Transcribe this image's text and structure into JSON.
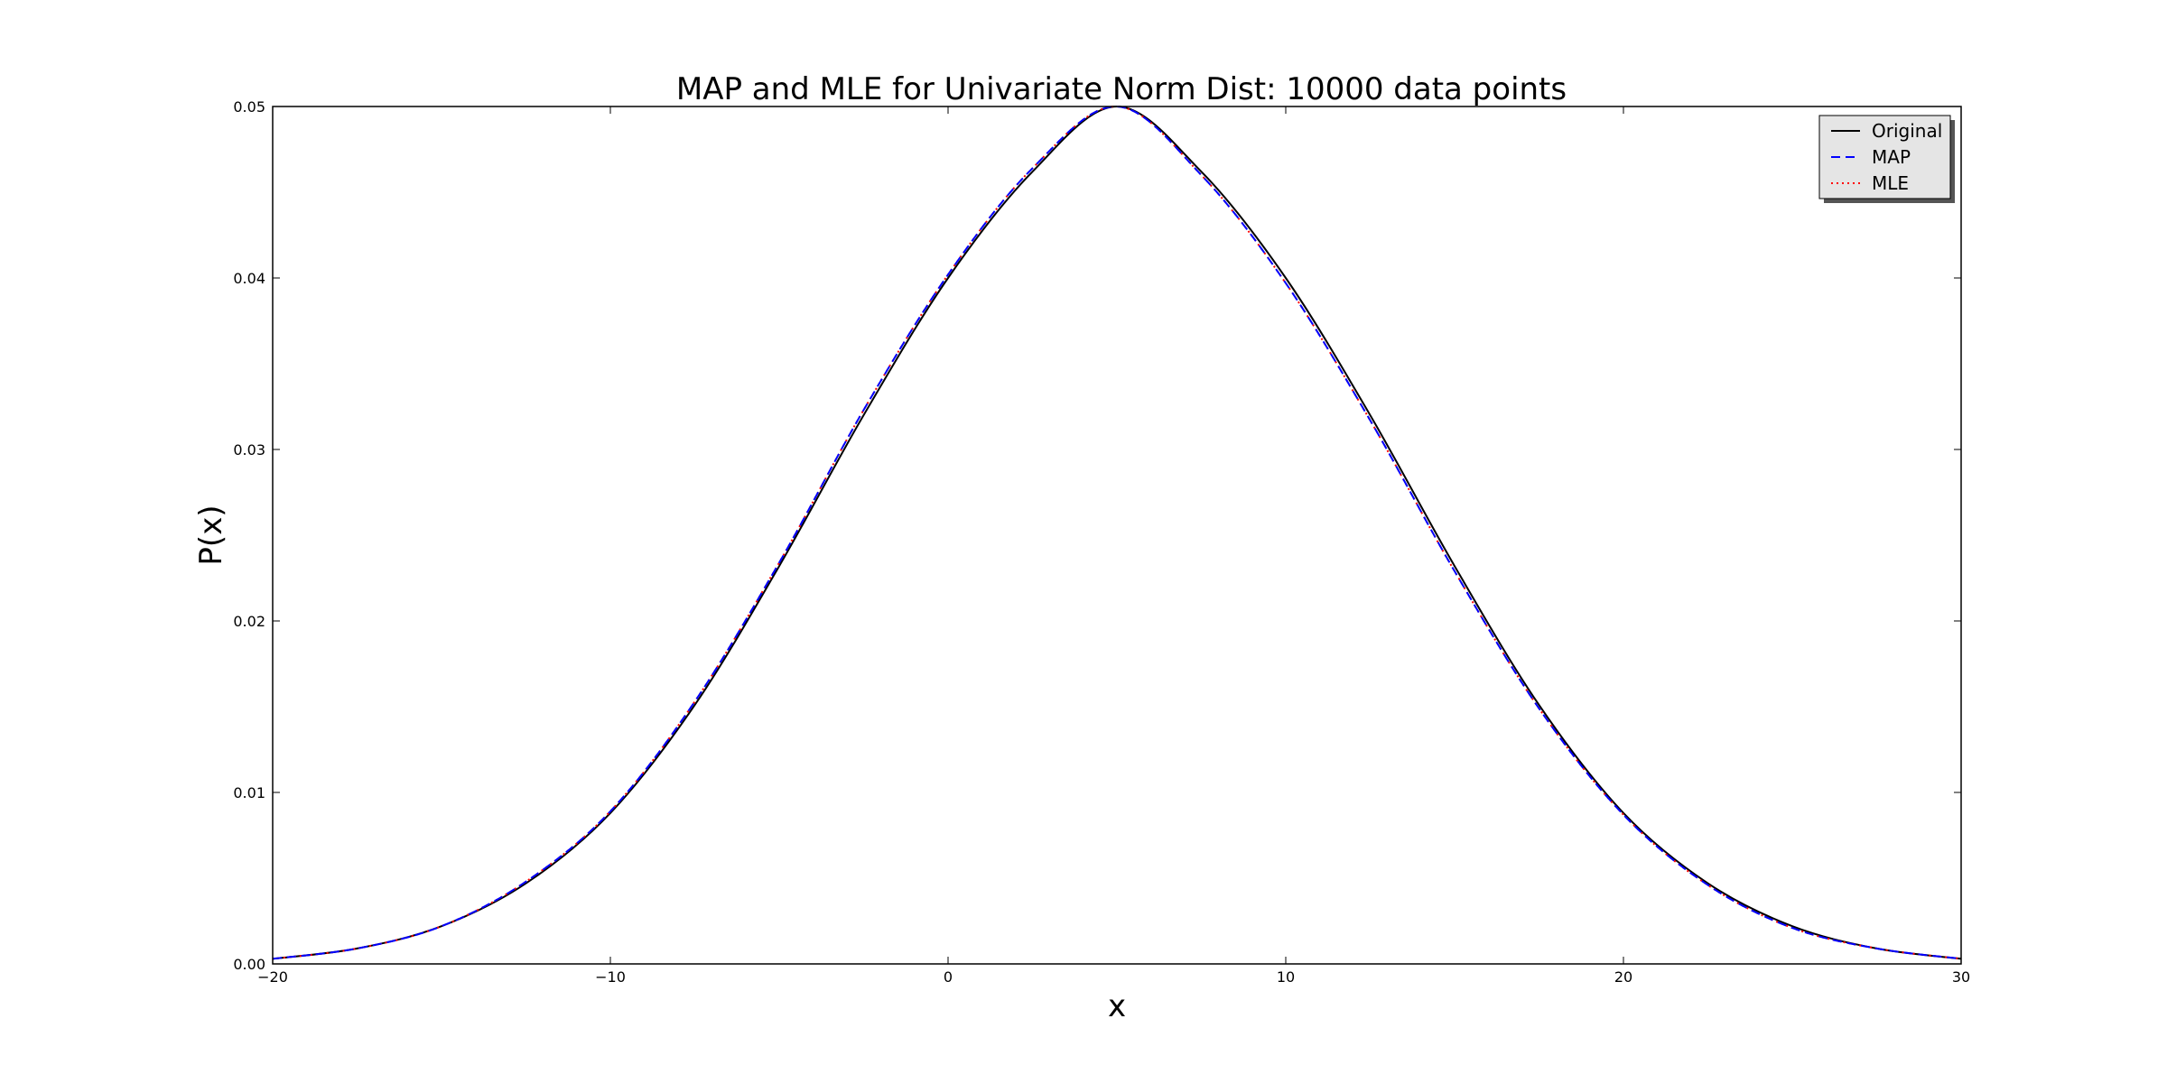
{
  "chart_data": {
    "type": "line",
    "title": "MAP and MLE for Univariate Norm Dist: 10000 data points",
    "xlabel": "x",
    "ylabel": "P(x)",
    "xlim": [
      -20,
      30
    ],
    "ylim": [
      0.0,
      0.05
    ],
    "xticks": [
      -20,
      -10,
      0,
      10,
      20,
      30
    ],
    "xtick_labels": [
      "−20",
      "−10",
      "0",
      "10",
      "20",
      "30"
    ],
    "yticks": [
      0.0,
      0.01,
      0.02,
      0.03,
      0.04,
      0.05
    ],
    "ytick_labels": [
      "0.00",
      "0.01",
      "0.02",
      "0.03",
      "0.04",
      "0.05"
    ],
    "grid": false,
    "legend_position": "top-right",
    "series": [
      {
        "name": "Original",
        "color": "#000000",
        "style": "solid",
        "x": [
          -20,
          -17.5,
          -15,
          -12.5,
          -10,
          -7.5,
          -5,
          -2.5,
          0,
          2.5,
          5,
          7.5,
          10,
          12.5,
          15,
          17.5,
          20,
          22.5,
          25,
          27.5,
          30
        ],
        "y": [
          0.0003,
          0.0009,
          0.0022,
          0.0047,
          0.0088,
          0.0151,
          0.0232,
          0.032,
          0.04,
          0.0462,
          0.05,
          0.0462,
          0.04,
          0.032,
          0.0232,
          0.0151,
          0.0088,
          0.0047,
          0.0022,
          0.0009,
          0.0003
        ]
      },
      {
        "name": "MAP",
        "color": "#0000ff",
        "style": "dashed",
        "x": [
          -20,
          -17.5,
          -15,
          -12.5,
          -10,
          -7.5,
          -5,
          -2.5,
          0,
          2.5,
          5,
          7.5,
          10,
          12.5,
          15,
          17.5,
          20,
          22.5,
          25,
          27.5,
          30
        ],
        "y": [
          0.0003,
          0.0009,
          0.0022,
          0.0048,
          0.0089,
          0.0153,
          0.0234,
          0.0323,
          0.0402,
          0.0464,
          0.05,
          0.046,
          0.0397,
          0.0317,
          0.0229,
          0.0149,
          0.0087,
          0.0046,
          0.0021,
          0.0009,
          0.0003
        ]
      },
      {
        "name": "MLE",
        "color": "#ff0000",
        "style": "dotted",
        "x": [
          -20,
          -17.5,
          -15,
          -12.5,
          -10,
          -7.5,
          -5,
          -2.5,
          0,
          2.5,
          5,
          7.5,
          10,
          12.5,
          15,
          17.5,
          20,
          22.5,
          25,
          27.5,
          30
        ],
        "y": [
          0.0003,
          0.0009,
          0.0022,
          0.0048,
          0.0089,
          0.0153,
          0.0234,
          0.0323,
          0.0402,
          0.0464,
          0.05,
          0.046,
          0.0397,
          0.0317,
          0.0229,
          0.0149,
          0.0087,
          0.0046,
          0.0021,
          0.0009,
          0.0003
        ]
      }
    ]
  }
}
